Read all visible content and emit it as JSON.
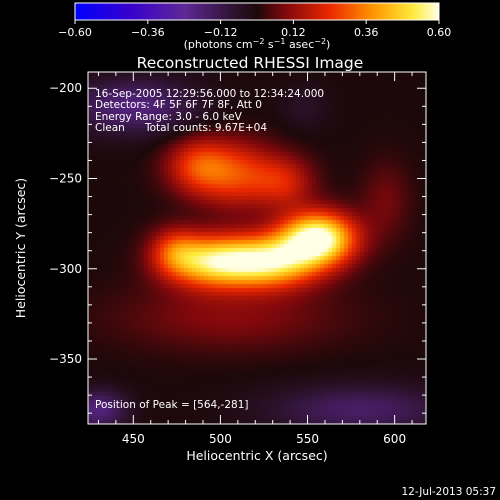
{
  "chart_data": {
    "type": "heatmap",
    "title": "Reconstructed RHESSI Image",
    "xlabel": "Heliocentric X (arcsec)",
    "ylabel": "Heliocentric Y (arcsec)",
    "xlim": [
      424,
      618
    ],
    "ylim": [
      -386,
      -191
    ],
    "x_ticks": [
      450,
      500,
      550,
      600
    ],
    "y_ticks": [
      -200,
      -250,
      -300,
      -350
    ],
    "x_tick_labels": [
      "450",
      "500",
      "550",
      "600"
    ],
    "y_tick_labels": [
      "−200",
      "−250",
      "−300",
      "−350"
    ],
    "colorbar": {
      "range": [
        -0.6,
        0.6
      ],
      "ticks": [
        -0.6,
        -0.36,
        -0.12,
        0.12,
        0.36,
        0.6
      ],
      "tick_labels": [
        "−0.60",
        "−0.36",
        "−0.12",
        "0.12",
        "0.36",
        "0.60"
      ],
      "units_prefix": "(photons cm",
      "units_sup1": "−2",
      "units_mid1": " s",
      "units_sup2": "−1",
      "units_mid2": " asec",
      "units_sup3": "−2",
      "units_suffix": ")"
    },
    "annotations": {
      "time_range": "16-Sep-2005 12:29:56.000 to 12:34:24.000",
      "detectors": "Detectors: 4F 5F 6F 7F 8F, Att 0",
      "energy": "Energy Range: 3.0 - 6.0 keV",
      "clean": "Clean",
      "counts": "Total counts: 9.67E+04",
      "peak": "Position of Peak = [564,-281]"
    },
    "peak": {
      "x": 564,
      "y": -281,
      "value": 0.6
    },
    "sources": [
      {
        "x": 556,
        "y": -283,
        "sx": 15,
        "sy": 10,
        "amp": 0.62
      },
      {
        "x": 528,
        "y": -296,
        "sx": 20,
        "sy": 10,
        "amp": 0.52
      },
      {
        "x": 494,
        "y": -296,
        "sx": 18,
        "sy": 10,
        "amp": 0.44
      },
      {
        "x": 474,
        "y": -290,
        "sx": 10,
        "sy": 9,
        "amp": 0.2
      },
      {
        "x": 510,
        "y": -248,
        "sx": 16,
        "sy": 13,
        "amp": 0.25
      },
      {
        "x": 487,
        "y": -243,
        "sx": 13,
        "sy": 11,
        "amp": 0.24
      },
      {
        "x": 537,
        "y": -252,
        "sx": 12,
        "sy": 10,
        "amp": 0.18
      },
      {
        "x": 505,
        "y": -327,
        "sx": 45,
        "sy": 13,
        "amp": 0.1
      },
      {
        "x": 595,
        "y": -262,
        "sx": 10,
        "sy": 15,
        "amp": 0.08
      },
      {
        "x": 450,
        "y": -210,
        "sx": 26,
        "sy": 11,
        "amp": -0.2
      },
      {
        "x": 580,
        "y": -378,
        "sx": 38,
        "sy": 10,
        "amp": -0.16
      },
      {
        "x": 430,
        "y": -378,
        "sx": 12,
        "sy": 8,
        "amp": -0.2
      },
      {
        "x": 548,
        "y": -210,
        "sx": 10,
        "sy": 9,
        "amp": -0.06
      }
    ],
    "background": 0.0
  },
  "footer": {
    "date": "12-Jul-2013 05:37"
  }
}
